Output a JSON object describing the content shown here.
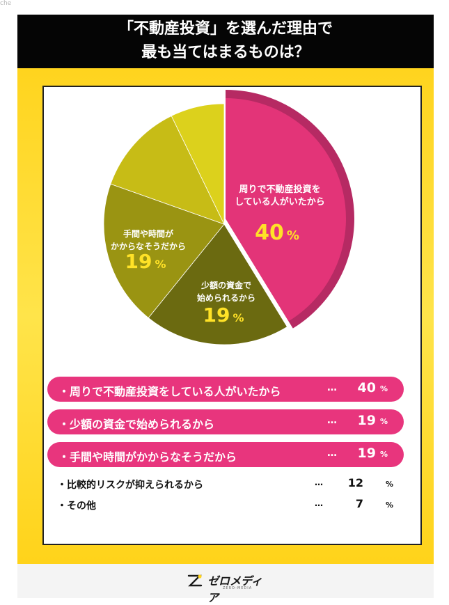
{
  "corner_tag": "che",
  "header": {
    "line1": "「不動産投資」を選んだ理由で",
    "line2": "最も当てはまるものは？"
  },
  "chart_data": {
    "type": "pie",
    "title": "「不動産投資」を選んだ理由で最も当てはまるものは？",
    "unit": "%",
    "slices": [
      {
        "label": "周りで不動産投資をしている人がいたから",
        "value": 40,
        "color": "#e33478",
        "pie_label_lines": [
          "周りで不動産投資を",
          "している人がいたから"
        ]
      },
      {
        "label": "少額の資金で始められるから",
        "value": 19,
        "color": "#6b6a10",
        "pie_label_lines": [
          "少額の資金で",
          "始められるから"
        ]
      },
      {
        "label": "手間や時間がかからなそうだから",
        "value": 19,
        "color": "#9a9412",
        "pie_label_lines": [
          "手間や時間が",
          "かからなそうだから"
        ]
      },
      {
        "label": "比較的リスクが抑えられるから",
        "value": 12,
        "color": "#c7bc16",
        "pie_label_lines": []
      },
      {
        "label": "その他",
        "value": 7,
        "color": "#dcd11c",
        "pie_label_lines": []
      }
    ],
    "highlight_color": "#b62a63",
    "value_text_color": "#ffe227"
  },
  "legend": {
    "bullet": "・",
    "dots": "…",
    "percent": "%",
    "plain_dots": "…"
  },
  "logo": {
    "name": "ゼロメディア",
    "sub": "ZERO-MEDIA"
  }
}
